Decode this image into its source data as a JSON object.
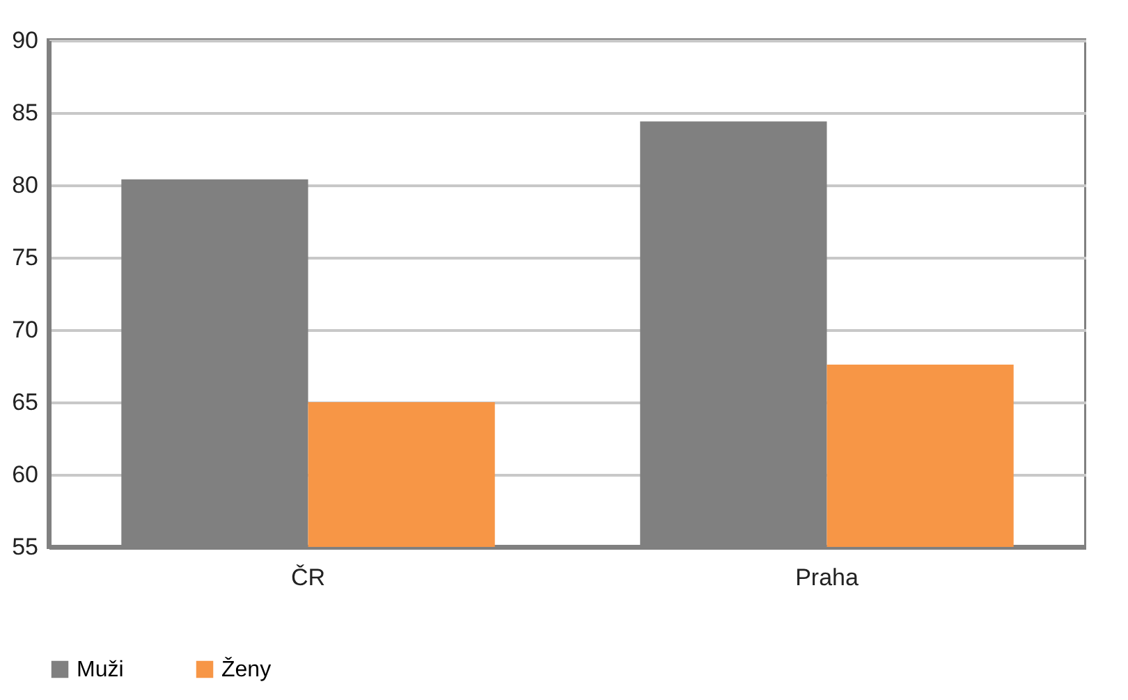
{
  "chart_data": {
    "type": "bar",
    "categories": [
      "ČR",
      "Praha"
    ],
    "series": [
      {
        "name": "Muži",
        "color": "#808080",
        "values": [
          80.4,
          84.4
        ]
      },
      {
        "name": "Ženy",
        "color": "#f79646",
        "values": [
          65.0,
          67.6
        ]
      }
    ],
    "ylim": [
      55,
      90
    ],
    "yticks": [
      55,
      60,
      65,
      70,
      75,
      80,
      85,
      90
    ],
    "grid": "y",
    "legend": "bottom"
  }
}
